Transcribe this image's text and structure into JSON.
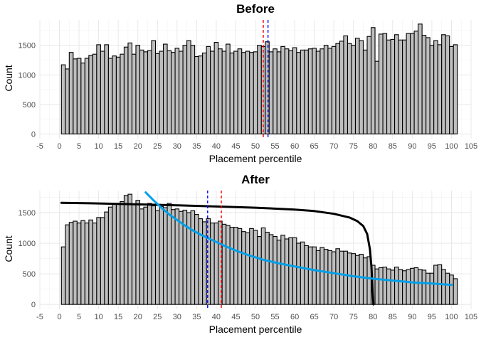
{
  "colors": {
    "bar_fill": "#bebebe",
    "bar_stroke": "#000000",
    "red_line": "#ff0000",
    "blue_line": "#0000ff",
    "curve_black": "#000000",
    "curve_cyan": "#00a0e9"
  },
  "chart_data": [
    {
      "type": "bar",
      "title": "Before",
      "xlabel": "Placement percentile",
      "ylabel": "Count",
      "xlim": [
        -5,
        105
      ],
      "ylim": [
        -80,
        1930
      ],
      "xticks": [
        -5,
        0,
        5,
        10,
        15,
        20,
        25,
        30,
        35,
        40,
        45,
        50,
        55,
        60,
        65,
        70,
        75,
        80,
        85,
        90,
        95,
        100,
        105
      ],
      "yticks": [
        0,
        500,
        1000,
        1500
      ],
      "bin_width": 1,
      "bin_start": 0.5,
      "values": [
        1170,
        1100,
        1380,
        1270,
        1280,
        1200,
        1280,
        1330,
        1350,
        1510,
        1400,
        1510,
        1280,
        1320,
        1300,
        1350,
        1470,
        1540,
        1350,
        1500,
        1420,
        1390,
        1410,
        1580,
        1360,
        1400,
        1520,
        1410,
        1380,
        1450,
        1400,
        1500,
        1580,
        1500,
        1310,
        1320,
        1370,
        1480,
        1400,
        1550,
        1440,
        1400,
        1520,
        1370,
        1400,
        1440,
        1380,
        1400,
        1380,
        1390,
        1500,
        1480,
        1560,
        1390,
        1440,
        1390,
        1480,
        1440,
        1410,
        1460,
        1380,
        1420,
        1420,
        1440,
        1450,
        1400,
        1440,
        1500,
        1450,
        1480,
        1530,
        1570,
        1660,
        1530,
        1500,
        1620,
        1580,
        1420,
        1650,
        1800,
        1230,
        1690,
        1700,
        1590,
        1600,
        1680,
        1590,
        1590,
        1700,
        1700,
        1740,
        1860,
        1670,
        1630,
        1500,
        1580,
        1510,
        1680,
        1660,
        1480,
        1510
      ],
      "vlines": [
        {
          "name": "red-dashed",
          "x": 52.0,
          "color": "#ff0000"
        },
        {
          "name": "blue-dashed",
          "x": 53.2,
          "color": "#0000ff"
        }
      ]
    },
    {
      "type": "bar",
      "title": "After",
      "xlabel": "Placement percentile",
      "ylabel": "Count",
      "xlim": [
        -5,
        105
      ],
      "ylim": [
        -80,
        1860
      ],
      "xticks": [
        -5,
        0,
        5,
        10,
        15,
        20,
        25,
        30,
        35,
        40,
        45,
        50,
        55,
        60,
        65,
        70,
        75,
        80,
        85,
        90,
        95,
        100,
        105
      ],
      "yticks": [
        0,
        500,
        1000,
        1500
      ],
      "bin_width": 1,
      "bin_start": 0.5,
      "values": [
        940,
        1300,
        1340,
        1360,
        1330,
        1370,
        1330,
        1380,
        1330,
        1420,
        1420,
        1510,
        1590,
        1650,
        1640,
        1680,
        1780,
        1800,
        1640,
        1700,
        1560,
        1590,
        1650,
        1610,
        1530,
        1600,
        1580,
        1650,
        1550,
        1560,
        1520,
        1540,
        1500,
        1530,
        1470,
        1400,
        1350,
        1400,
        1330,
        1330,
        1360,
        1310,
        1290,
        1260,
        1260,
        1240,
        1190,
        1170,
        1240,
        1210,
        1110,
        1250,
        1180,
        1140,
        1110,
        1050,
        1130,
        1070,
        1090,
        1090,
        1000,
        1020,
        960,
        940,
        940,
        880,
        930,
        900,
        880,
        860,
        910,
        870,
        870,
        840,
        830,
        800,
        820,
        760,
        780,
        640,
        580,
        600,
        610,
        580,
        560,
        610,
        570,
        550,
        570,
        590,
        600,
        570,
        560,
        510,
        510,
        640,
        650,
        570,
        510,
        480,
        420
      ],
      "vlines": [
        {
          "name": "blue-dashed",
          "x": 37.8,
          "color": "#0000ff"
        },
        {
          "name": "red-dashed",
          "x": 41.3,
          "color": "#ff0000"
        }
      ],
      "curves": [
        {
          "name": "black-curve",
          "color": "#000000",
          "points": [
            [
              0.5,
              1660
            ],
            [
              10,
              1650
            ],
            [
              20,
              1635
            ],
            [
              30,
              1620
            ],
            [
              40,
              1600
            ],
            [
              50,
              1580
            ],
            [
              60,
              1550
            ],
            [
              65,
              1525
            ],
            [
              70,
              1480
            ],
            [
              74,
              1420
            ],
            [
              76,
              1360
            ],
            [
              77.5,
              1280
            ],
            [
              78.5,
              1150
            ],
            [
              79.2,
              900
            ],
            [
              79.6,
              600
            ],
            [
              79.9,
              200
            ],
            [
              80.1,
              0
            ]
          ]
        },
        {
          "name": "cyan-curve",
          "color": "#00a0e9",
          "points": [
            [
              22,
              1830
            ],
            [
              24,
              1700
            ],
            [
              26,
              1580
            ],
            [
              28,
              1470
            ],
            [
              30,
              1380
            ],
            [
              32,
              1290
            ],
            [
              34,
              1210
            ],
            [
              36,
              1140
            ],
            [
              38,
              1080
            ],
            [
              40,
              1020
            ],
            [
              42,
              960
            ],
            [
              45,
              880
            ],
            [
              48,
              810
            ],
            [
              52,
              730
            ],
            [
              56,
              670
            ],
            [
              60,
              620
            ],
            [
              65,
              560
            ],
            [
              70,
              510
            ],
            [
              75,
              460
            ],
            [
              80,
              420
            ],
            [
              85,
              390
            ],
            [
              90,
              360
            ],
            [
              95,
              340
            ],
            [
              100,
              320
            ]
          ]
        }
      ]
    }
  ]
}
